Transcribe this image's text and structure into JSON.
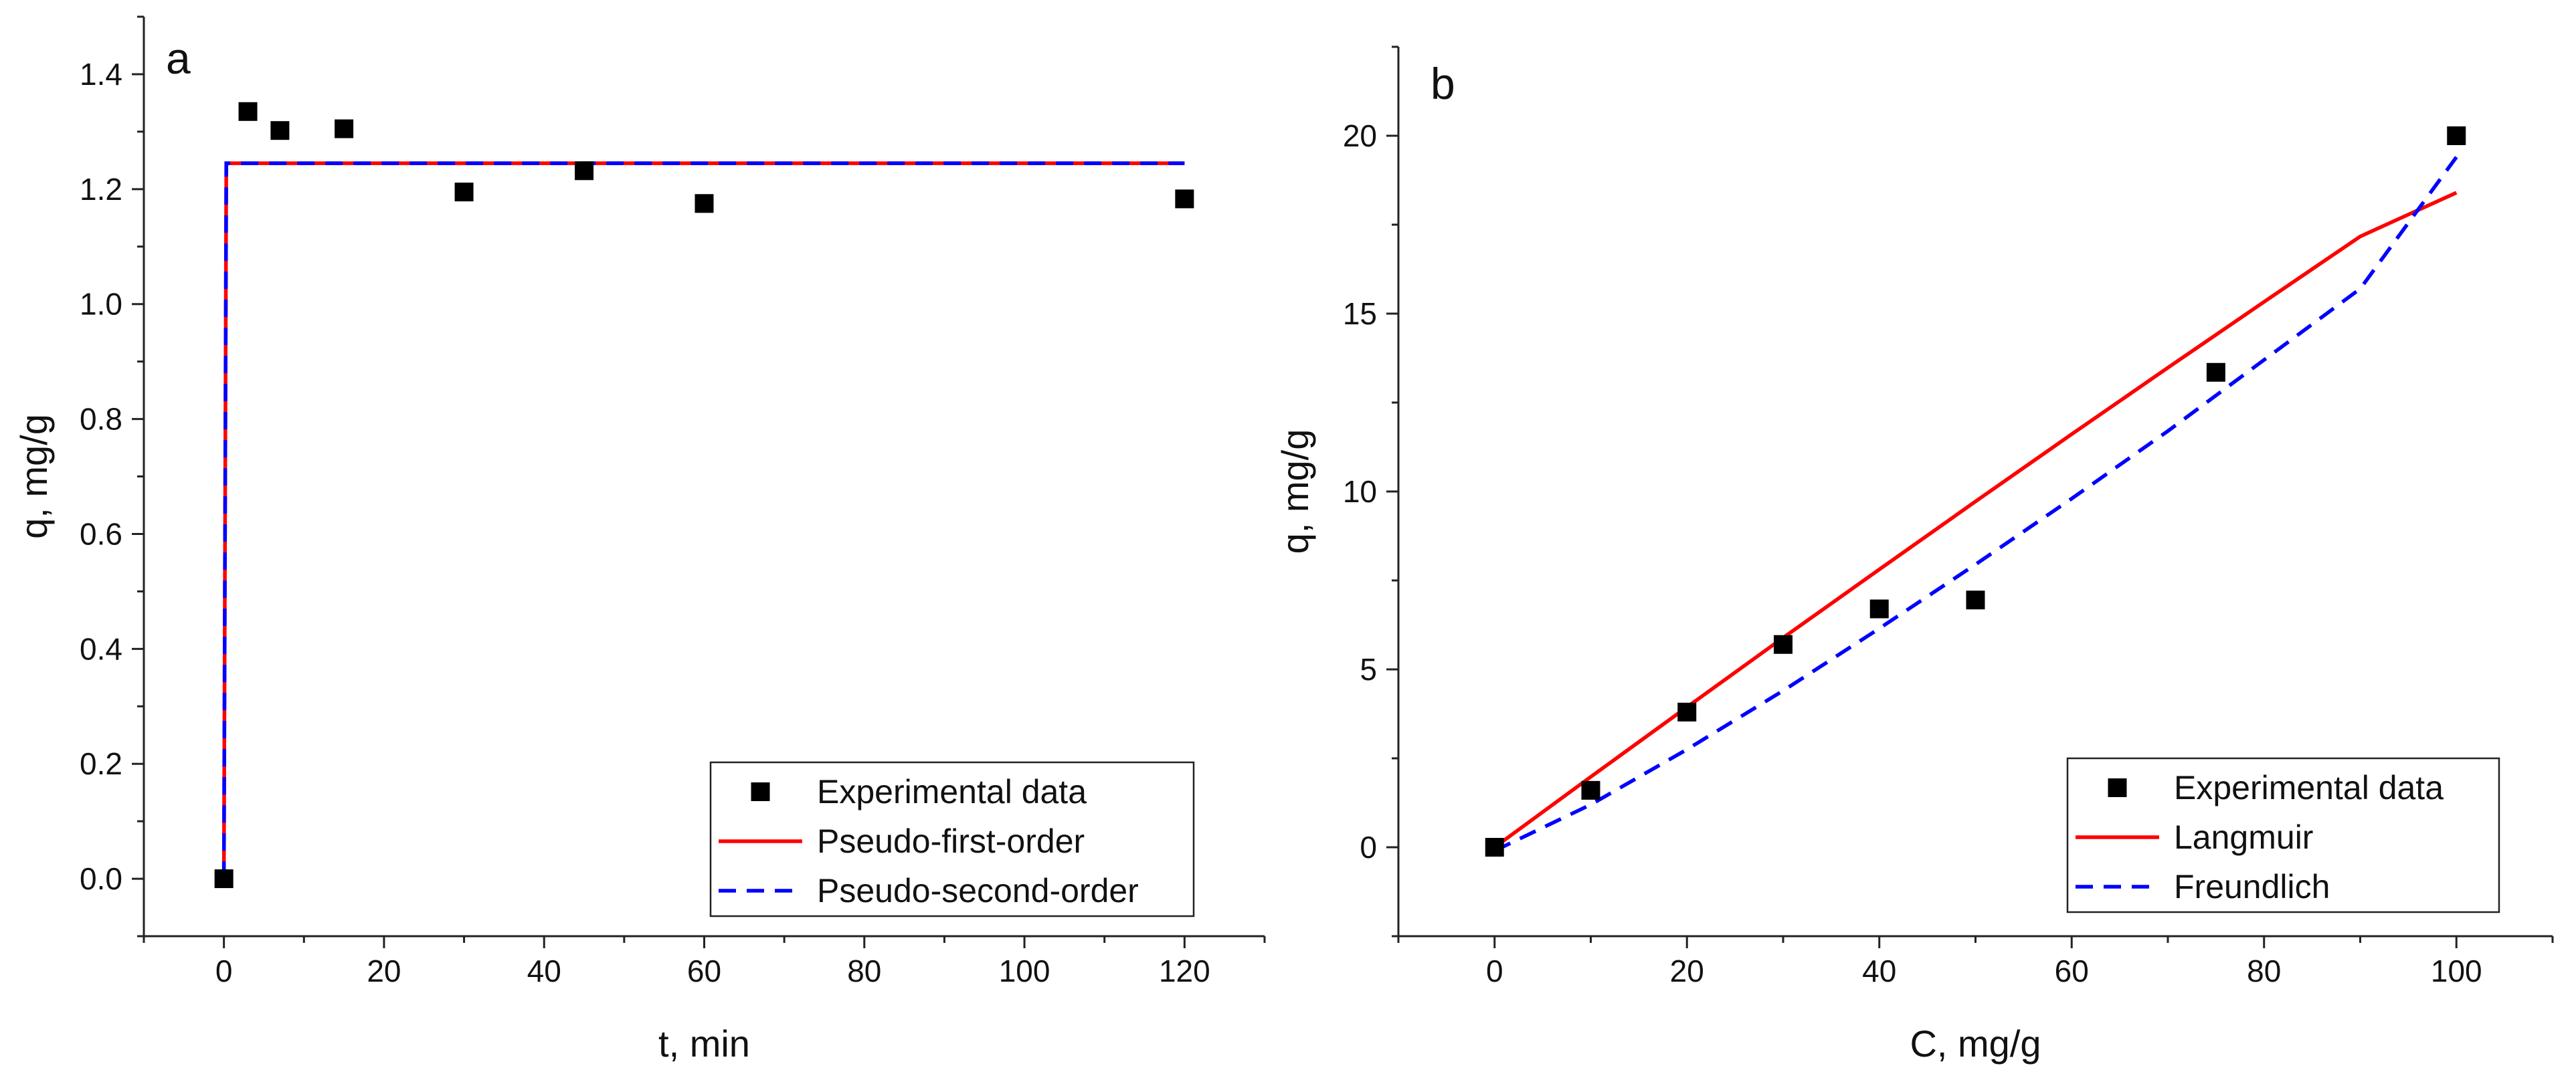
{
  "chart_data": [
    {
      "type": "scatter",
      "panel_label": "a",
      "xlabel": "t, min",
      "ylabel": "q, mg/g",
      "xlim": [
        -10,
        130
      ],
      "ylim": [
        -0.1,
        1.5
      ],
      "xticks": [
        0,
        20,
        40,
        60,
        80,
        100,
        120
      ],
      "yticks": [
        0.0,
        0.2,
        0.4,
        0.6,
        0.8,
        1.0,
        1.2,
        1.4
      ],
      "ytick_decimals": 1,
      "legend_position": "bottom-right",
      "series": [
        {
          "name": "Experimental data",
          "style": "marker",
          "color": "#000000",
          "x": [
            0,
            3,
            7,
            15,
            30,
            45,
            60,
            120
          ],
          "y": [
            0.0,
            1.335,
            1.302,
            1.305,
            1.195,
            1.232,
            1.175,
            1.183
          ]
        },
        {
          "name": "Pseudo-first-order",
          "style": "solid",
          "color": "#ff0000",
          "x": [
            0,
            0.3,
            120
          ],
          "y": [
            0.0,
            1.245,
            1.245
          ]
        },
        {
          "name": "Pseudo-second-order",
          "style": "dashed",
          "color": "#0000ff",
          "x": [
            0,
            0.3,
            120
          ],
          "y": [
            0.0,
            1.245,
            1.245
          ]
        }
      ]
    },
    {
      "type": "scatter",
      "panel_label": "b",
      "xlabel": "C, mg/g",
      "ylabel": "q, mg/g",
      "xlim": [
        -10,
        110
      ],
      "ylim": [
        -2.5,
        22.5
      ],
      "xticks": [
        0,
        20,
        40,
        60,
        80,
        100
      ],
      "yticks": [
        0,
        5,
        10,
        15,
        20
      ],
      "ytick_decimals": 0,
      "legend_position": "bottom-right",
      "series": [
        {
          "name": "Experimental data",
          "style": "marker",
          "color": "#000000",
          "x": [
            0,
            10,
            20,
            30,
            40,
            50,
            75,
            100
          ],
          "y": [
            0.0,
            1.6,
            3.8,
            5.7,
            6.7,
            6.95,
            13.35,
            20.0
          ]
        },
        {
          "name": "Langmuir",
          "style": "solid",
          "color": "#ff0000",
          "x": [
            0,
            10,
            20,
            30,
            40,
            50,
            60,
            70,
            80,
            90,
            100
          ],
          "y": [
            0.0,
            1.98,
            3.94,
            5.89,
            7.81,
            9.72,
            11.61,
            13.48,
            15.33,
            17.17,
            18.4
          ]
        },
        {
          "name": "Freundlich",
          "style": "dashed",
          "color": "#0000ff",
          "x": [
            0,
            5,
            10,
            20,
            30,
            40,
            50,
            60,
            70,
            80,
            90,
            100
          ],
          "y": [
            -0.1,
            0.55,
            1.2,
            2.75,
            4.4,
            6.15,
            7.95,
            9.8,
            11.7,
            13.7,
            15.7,
            19.4
          ]
        }
      ]
    }
  ]
}
